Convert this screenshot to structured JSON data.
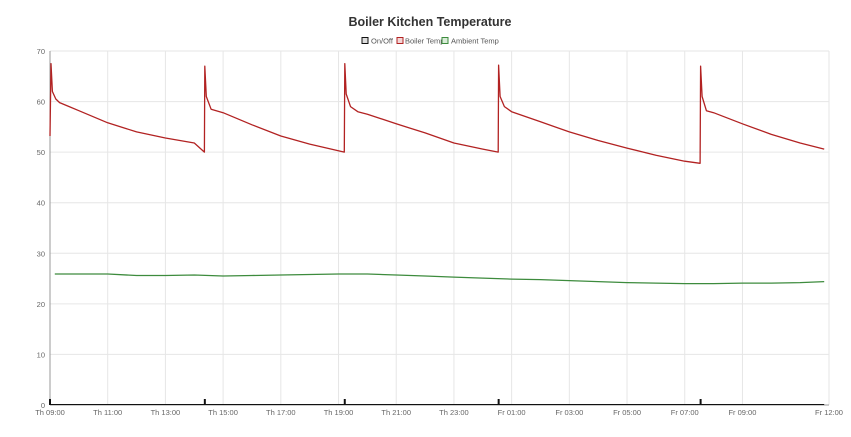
{
  "chart_data": {
    "type": "line",
    "title": "Boiler Kitchen Temperature",
    "xlabel": "",
    "ylabel": "",
    "ylim": [
      0,
      70
    ],
    "yticks": [
      0,
      10,
      20,
      30,
      40,
      50,
      60,
      70
    ],
    "xlim": [
      "Th 09:00",
      "Fr 12:00"
    ],
    "xticks": [
      "Th 09:00",
      "Th 11:00",
      "Th 13:00",
      "Th 15:00",
      "Th 17:00",
      "Th 19:00",
      "Th 21:00",
      "Th 23:00",
      "Fr 01:00",
      "Fr 03:00",
      "Fr 05:00",
      "Fr 07:00",
      "Fr 09:00",
      "Fr 12:00"
    ],
    "legend_position": "top-center",
    "grid": true,
    "series": [
      {
        "name": "On/Off",
        "color": "#111111",
        "style": "pulses",
        "x": [
          "Th 09:00",
          "Th 14:22",
          "Th 19:13",
          "Fr 00:33",
          "Fr 07:33"
        ],
        "values": [
          1,
          1,
          1,
          1,
          1
        ]
      },
      {
        "name": "Boiler Temp",
        "color": "#b22222",
        "x": [
          "Th 09:00",
          "Th 09:02",
          "Th 09:05",
          "Th 09:12",
          "Th 09:20",
          "Th 09:40",
          "Th 10:00",
          "Th 11:00",
          "Th 12:00",
          "Th 13:00",
          "Th 14:00",
          "Th 14:21",
          "Th 14:22",
          "Th 14:25",
          "Th 14:35",
          "Th 15:00",
          "Th 16:00",
          "Th 17:00",
          "Th 18:00",
          "Th 19:12",
          "Th 19:13",
          "Th 19:16",
          "Th 19:25",
          "Th 19:40",
          "Th 20:00",
          "Th 21:00",
          "Th 22:00",
          "Th 23:00",
          "Fr 00:00",
          "Fr 00:32",
          "Fr 00:33",
          "Fr 00:36",
          "Fr 00:45",
          "Fr 01:00",
          "Fr 02:00",
          "Fr 03:00",
          "Fr 04:00",
          "Fr 05:00",
          "Fr 06:00",
          "Fr 07:00",
          "Fr 07:32",
          "Fr 07:33",
          "Fr 07:36",
          "Fr 07:45",
          "Fr 08:00",
          "Fr 09:00",
          "Fr 10:00",
          "Fr 11:00",
          "Fr 11:50"
        ],
        "values": [
          53.2,
          67.5,
          62.0,
          60.5,
          59.8,
          59.0,
          58.2,
          55.8,
          54.0,
          52.8,
          51.8,
          50.0,
          67.0,
          61.0,
          58.5,
          57.8,
          55.4,
          53.2,
          51.6,
          50.0,
          67.5,
          61.5,
          59.0,
          58.0,
          57.5,
          55.6,
          53.8,
          51.8,
          50.6,
          50.0,
          67.2,
          61.0,
          59.0,
          58.0,
          56.0,
          54.0,
          52.3,
          50.8,
          49.4,
          48.2,
          47.8,
          67.0,
          61.0,
          58.2,
          57.8,
          55.6,
          53.5,
          51.8,
          50.6
        ]
      },
      {
        "name": "Ambient Temp",
        "color": "#3d8b3d",
        "x": [
          "Th 09:10",
          "Th 11:00",
          "Th 12:00",
          "Th 13:00",
          "Th 14:00",
          "Th 15:00",
          "Th 16:00",
          "Th 17:00",
          "Th 18:00",
          "Th 19:00",
          "Th 20:00",
          "Th 21:00",
          "Th 22:00",
          "Th 23:00",
          "Fr 00:00",
          "Fr 01:00",
          "Fr 02:00",
          "Fr 03:00",
          "Fr 04:00",
          "Fr 05:00",
          "Fr 06:00",
          "Fr 07:00",
          "Fr 08:00",
          "Fr 09:00",
          "Fr 10:00",
          "Fr 11:00",
          "Fr 11:50"
        ],
        "values": [
          25.9,
          25.9,
          25.6,
          25.6,
          25.7,
          25.5,
          25.6,
          25.7,
          25.8,
          25.9,
          25.9,
          25.7,
          25.5,
          25.3,
          25.1,
          24.9,
          24.8,
          24.6,
          24.4,
          24.2,
          24.1,
          24.0,
          24.0,
          24.1,
          24.1,
          24.2,
          24.4
        ]
      }
    ]
  }
}
